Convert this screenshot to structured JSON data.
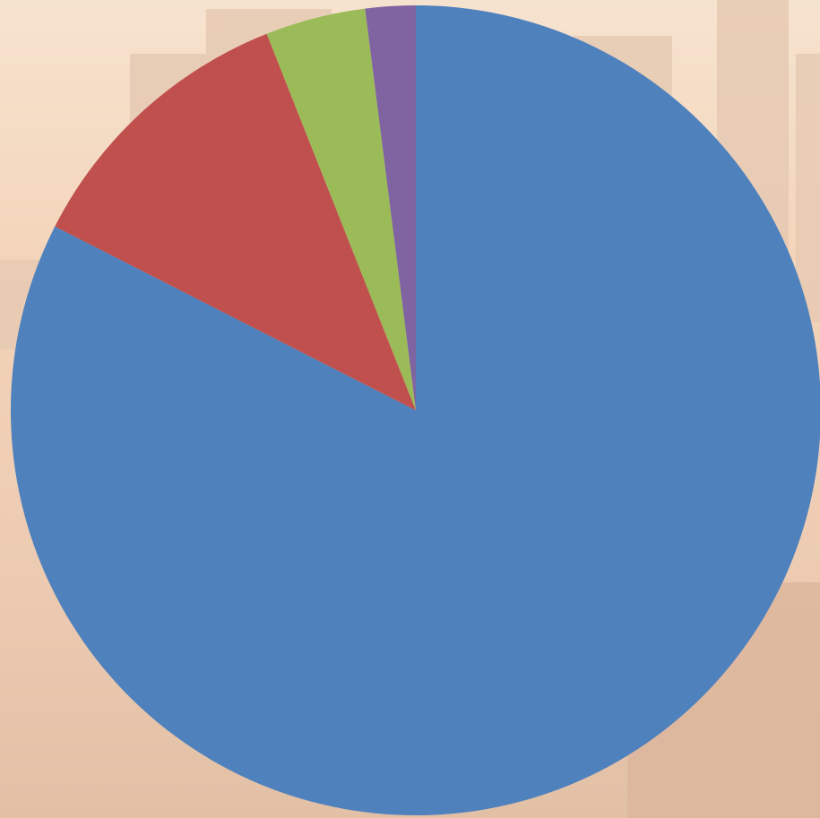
{
  "chart_data": {
    "type": "pie",
    "values": [
      82.5,
      11.5,
      4,
      2
    ],
    "colors": [
      "#4f81bd",
      "#c0504d",
      "#9bbb59",
      "#8064a2"
    ]
  }
}
